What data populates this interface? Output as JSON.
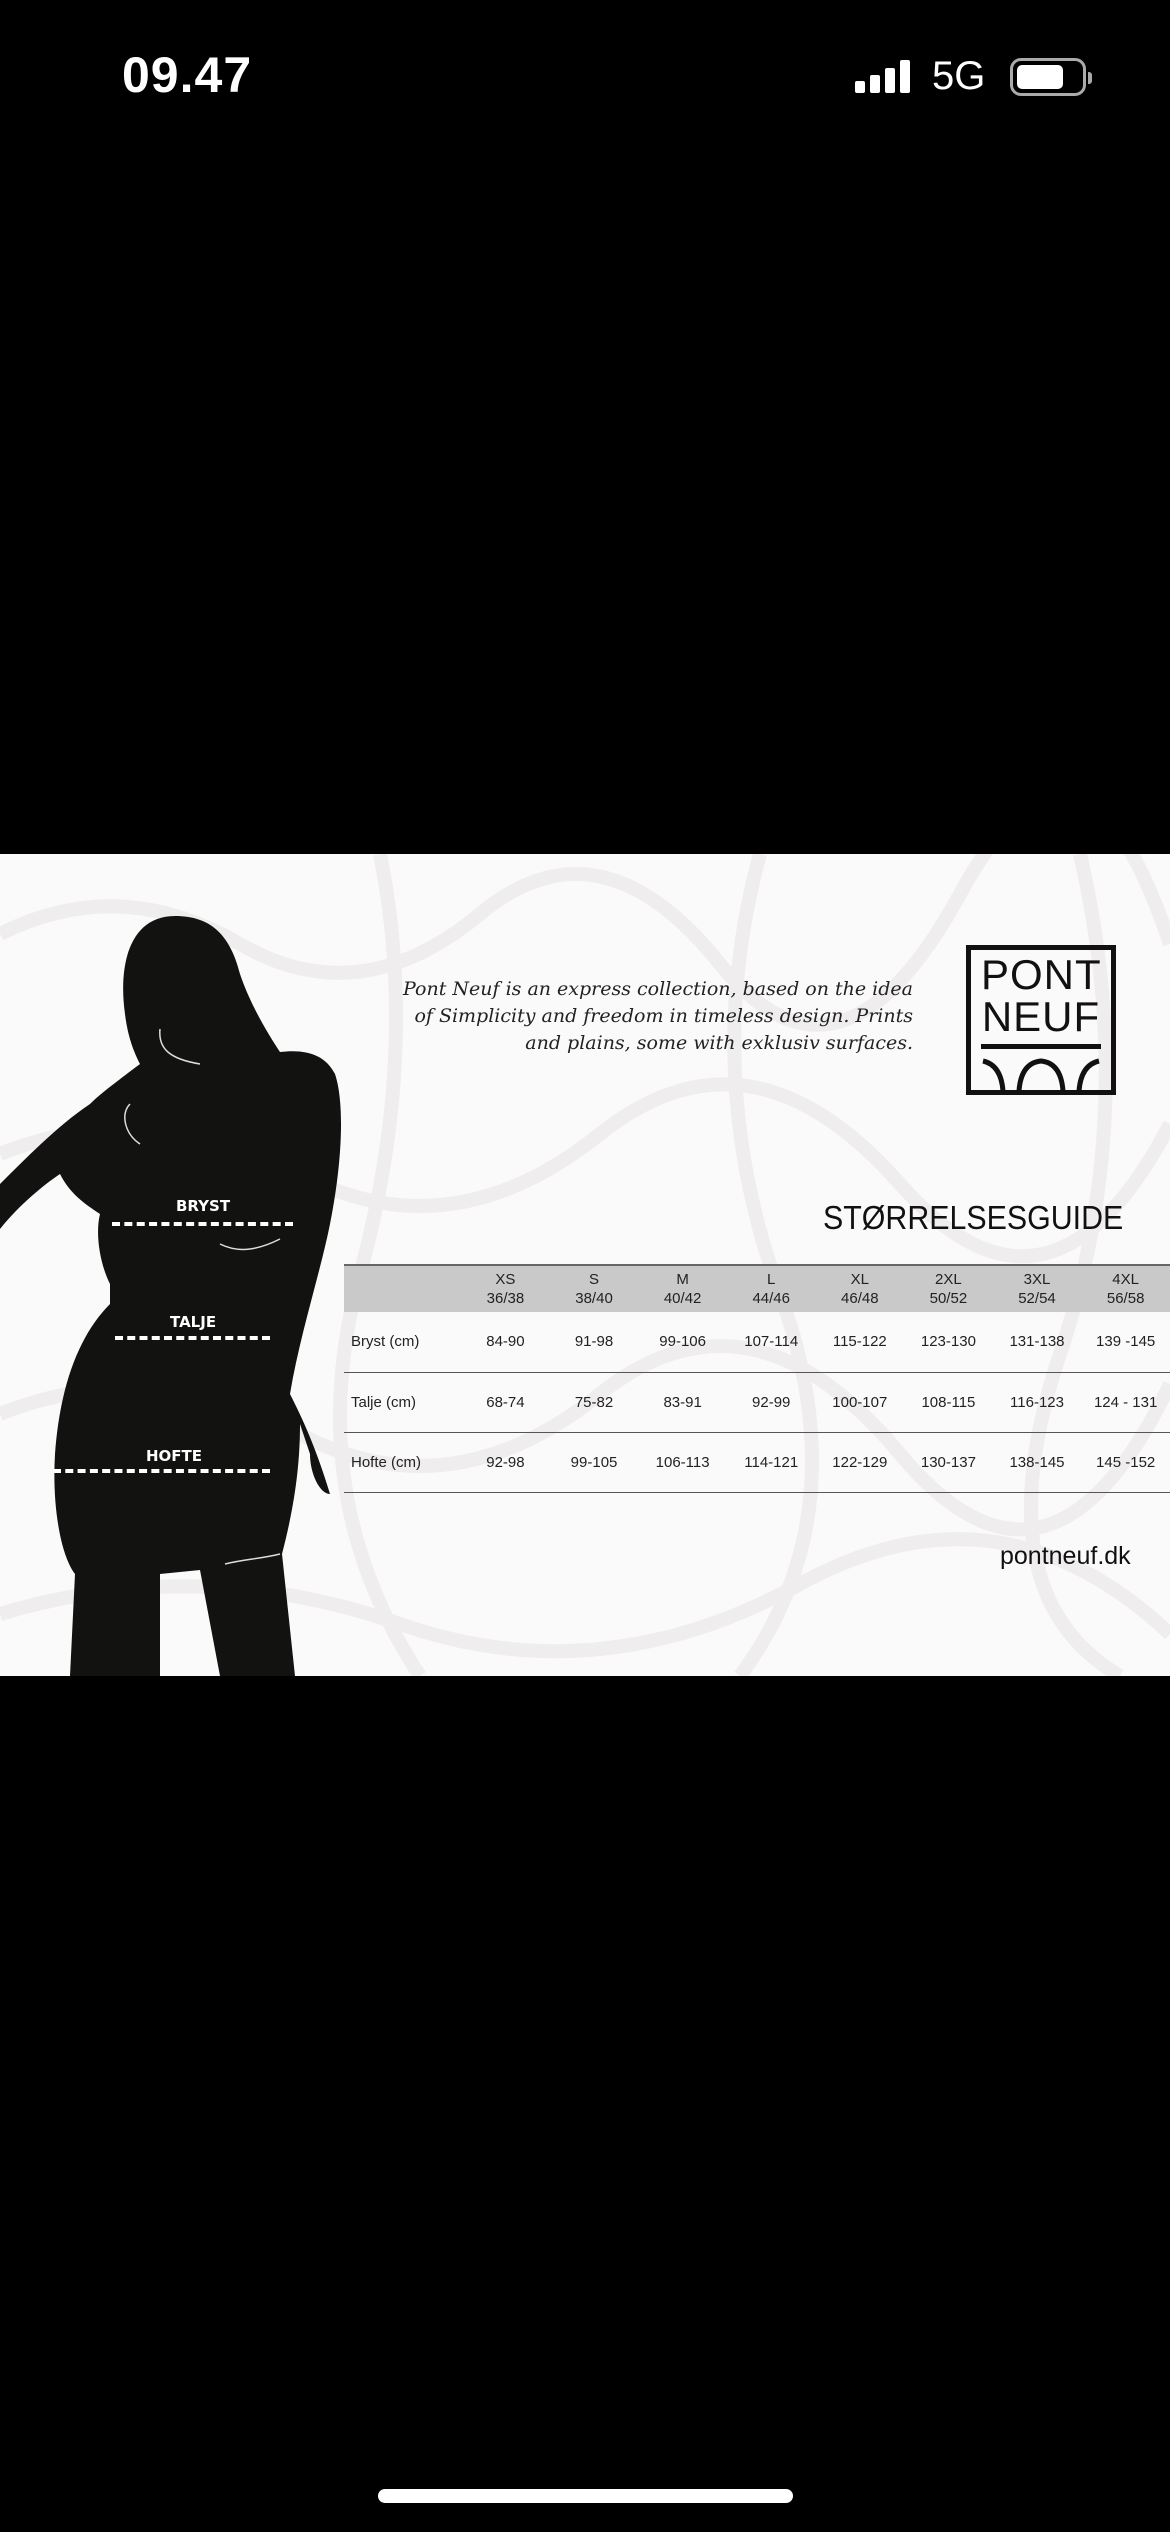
{
  "status_bar": {
    "time": "09.47",
    "network": "5G",
    "battery_level": 0.65
  },
  "guide": {
    "description": "Pont Neuf is an express collection, based on the idea of Simplicity and freedom in timeless design. Prints and plains, some with exklusiv surfaces.",
    "logo_text": [
      "PONT",
      "NEUF"
    ],
    "title": "STØRRELSESGUIDE",
    "measure_labels": {
      "bust": "BRYST",
      "waist": "TALJE",
      "hip": "HOFTE"
    },
    "table": {
      "sizes": [
        [
          "XS",
          "36/38"
        ],
        [
          "S",
          "38/40"
        ],
        [
          "M",
          "40/42"
        ],
        [
          "L",
          "44/46"
        ],
        [
          "XL",
          "46/48"
        ],
        [
          "2XL",
          "50/52"
        ],
        [
          "3XL",
          "52/54"
        ],
        [
          "4XL",
          "56/58"
        ]
      ],
      "rows": [
        {
          "label": "Bryst (cm)",
          "values": [
            "84-90",
            "91-98",
            "99-106",
            "107-114",
            "115-122",
            "123-130",
            "131-138",
            "139 -145"
          ]
        },
        {
          "label": "Talje (cm)",
          "values": [
            "68-74",
            "75-82",
            "83-91",
            "92-99",
            "100-107",
            "108-115",
            "116-123",
            "124 - 131"
          ]
        },
        {
          "label": "Hofte (cm)",
          "values": [
            "92-98",
            "99-105",
            "106-113",
            "114-121",
            "122-129",
            "130-137",
            "138-145",
            "145 -152"
          ]
        }
      ]
    },
    "website": "pontneuf.dk"
  }
}
